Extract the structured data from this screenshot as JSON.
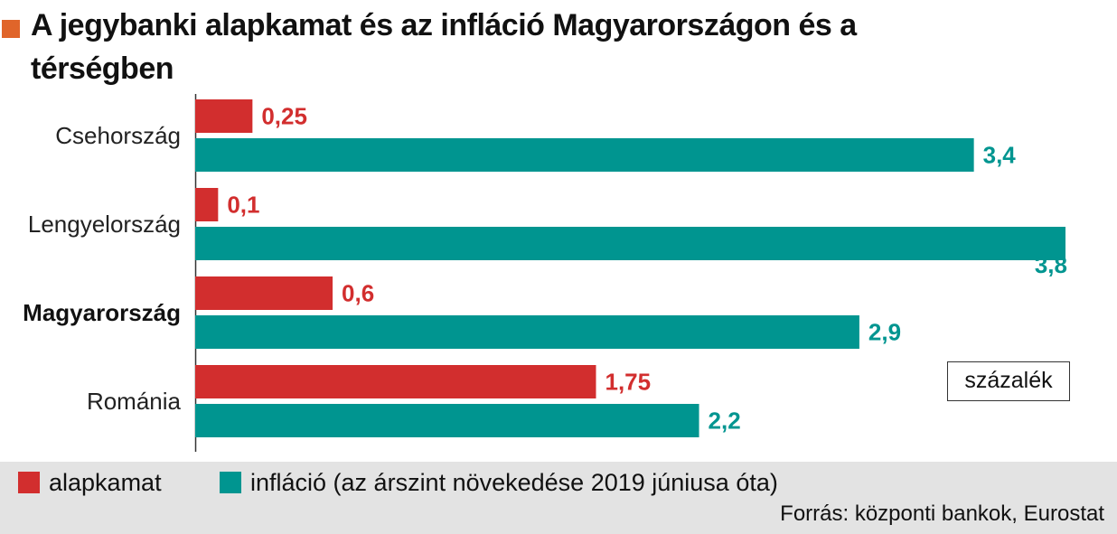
{
  "title": "A jegybanki alapkamat és az infláció Magyarországon és a térségben",
  "unit_label": "százalék",
  "source": "Forrás: központi bankok, Eurostat",
  "colors": {
    "title_marker": "#e0652a",
    "alapkamat": "#d22e2e",
    "inflacio": "#009590"
  },
  "legend": [
    {
      "label": "alapkamat",
      "color": "#d22e2e"
    },
    {
      "label": "infláció (az árszint növekedése 2019 júniusa óta)",
      "color": "#009590"
    }
  ],
  "chart_data": {
    "type": "bar",
    "orientation": "horizontal",
    "categories": [
      "Csehország",
      "Lengyelország",
      "Magyarország",
      "Románia"
    ],
    "highlighted_category": "Magyarország",
    "series": [
      {
        "name": "alapkamat",
        "values": [
          0.25,
          0.1,
          0.6,
          1.75
        ],
        "labels": [
          "0,25",
          "0,1",
          "0,6",
          "1,75"
        ],
        "color": "#d22e2e"
      },
      {
        "name": "infláció (az árszint növekedése 2019 júniusa óta)",
        "values": [
          3.4,
          3.8,
          2.9,
          2.2
        ],
        "labels": [
          "3,4",
          "3,8",
          "2,9",
          "2,2"
        ],
        "color": "#009590"
      }
    ],
    "xlim": [
      0,
      3.8
    ],
    "grid": false,
    "legend_position": "bottom"
  }
}
